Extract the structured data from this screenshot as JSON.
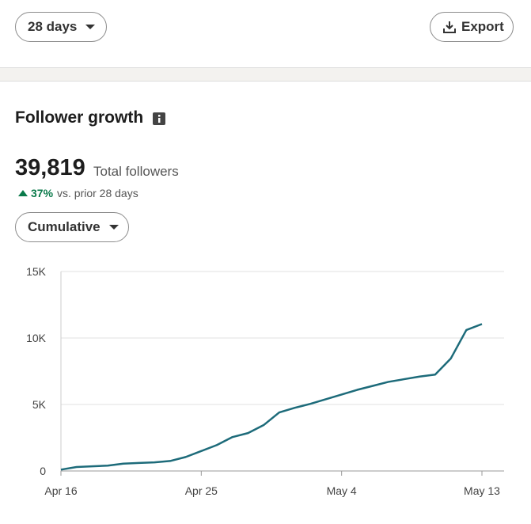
{
  "header": {
    "range_button": "28 days",
    "export_button": "Export"
  },
  "summary": {
    "title": "Follower growth",
    "total": "39,819",
    "total_label": "Total followers",
    "change": "37%",
    "change_label": "vs. prior 28 days",
    "mode_button": "Cumulative"
  },
  "chart_data": {
    "type": "line",
    "categories": [
      "Apr 16",
      null,
      null,
      null,
      null,
      null,
      null,
      null,
      null,
      "Apr 25",
      null,
      null,
      null,
      null,
      null,
      null,
      null,
      null,
      "May 4",
      null,
      null,
      null,
      null,
      null,
      null,
      null,
      null,
      "May 13"
    ],
    "series": [
      {
        "color": "#1d6b7a",
        "values": [
          100,
          300,
          350,
          400,
          550,
          600,
          650,
          750,
          1050,
          1500,
          1950,
          2550,
          2850,
          3450,
          4400,
          4750,
          5050,
          5400,
          5750,
          6100,
          6400,
          6700,
          6900,
          7100,
          7250,
          8450,
          10600,
          11050
        ]
      }
    ],
    "ylim": [
      0,
      15000
    ],
    "yticks": [
      0,
      {
        "value": 5000,
        "label": "5K"
      },
      {
        "value": 10000,
        "label": "10K"
      },
      {
        "value": 15000,
        "label": "15K"
      }
    ],
    "grid": true
  }
}
